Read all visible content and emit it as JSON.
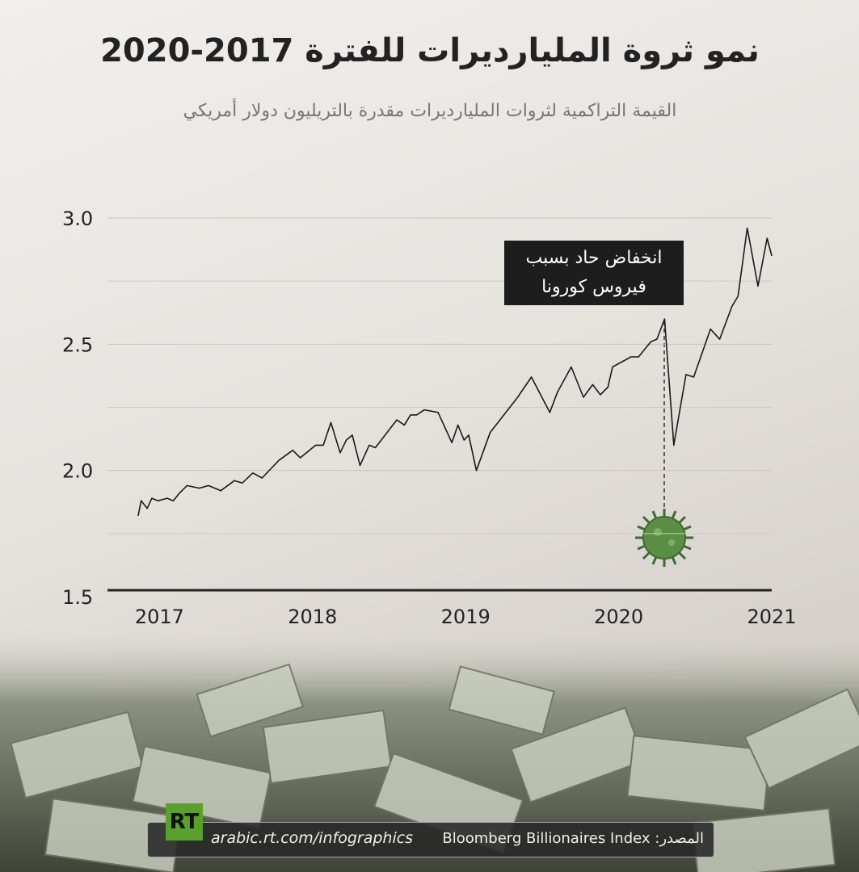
{
  "chart_data": {
    "type": "line",
    "title": "نمو ثروة المليارديرات للفترة 2017-2020",
    "subtitle": "القيمة التراكمية لثروات المليارديرات مقدرة بالتريليون دولار أمريكي",
    "annotation": "انخفاض حاد بسبب فيروس كورونا",
    "x": [
      2016.86,
      2016.88,
      2016.92,
      2016.95,
      2016.99,
      2017.05,
      2017.09,
      2017.13,
      2017.18,
      2017.26,
      2017.32,
      2017.4,
      2017.49,
      2017.54,
      2017.61,
      2017.67,
      2017.78,
      2017.87,
      2017.92,
      2018.02,
      2018.07,
      2018.12,
      2018.18,
      2018.22,
      2018.26,
      2018.31,
      2018.37,
      2018.41,
      2018.55,
      2018.6,
      2018.64,
      2018.68,
      2018.73,
      2018.82,
      2018.91,
      2018.95,
      2018.99,
      2019.02,
      2019.07,
      2019.16,
      2019.34,
      2019.43,
      2019.55,
      2019.6,
      2019.69,
      2019.77,
      2019.83,
      2019.88,
      2019.93,
      2019.96,
      2020.08,
      2020.13,
      2020.21,
      2020.25,
      2020.3,
      2020.36,
      2020.44,
      2020.49,
      2020.6,
      2020.66,
      2020.74,
      2020.78,
      2020.84,
      2020.91,
      2020.97,
      2021.0
    ],
    "series": [
      {
        "color": "#1a1a1a",
        "values": [
          1.82,
          1.88,
          1.85,
          1.89,
          1.88,
          1.89,
          1.88,
          1.91,
          1.94,
          1.93,
          1.94,
          1.92,
          1.96,
          1.95,
          1.99,
          1.97,
          2.04,
          2.08,
          2.05,
          2.1,
          2.1,
          2.19,
          2.07,
          2.12,
          2.14,
          2.02,
          2.1,
          2.09,
          2.2,
          2.18,
          2.22,
          2.22,
          2.24,
          2.23,
          2.11,
          2.18,
          2.12,
          2.14,
          2.0,
          2.15,
          2.29,
          2.37,
          2.23,
          2.31,
          2.41,
          2.29,
          2.34,
          2.3,
          2.33,
          2.41,
          2.45,
          2.45,
          2.51,
          2.52,
          2.6,
          2.1,
          2.38,
          2.37,
          2.56,
          2.52,
          2.65,
          2.69,
          2.96,
          2.73,
          2.92,
          2.85
        ]
      }
    ],
    "xlim": [
      2016.66,
      2021.0
    ],
    "xticks": [
      2017,
      2018,
      2019,
      2020,
      2021
    ],
    "ylim": [
      1.5,
      3.0
    ],
    "yticks": [
      1.5,
      {
        "value": 2,
        "label": "2.0"
      },
      2.5,
      {
        "value": 3,
        "label": "3.0"
      }
    ],
    "minor_yticks": [
      1.75,
      2.25,
      2.75
    ],
    "grid": true
  },
  "footer": {
    "logo": "RT",
    "website": "arabic.rt.com/infographics",
    "source_label": "المصدر:",
    "source": "Bloomberg Billionaires Index"
  }
}
